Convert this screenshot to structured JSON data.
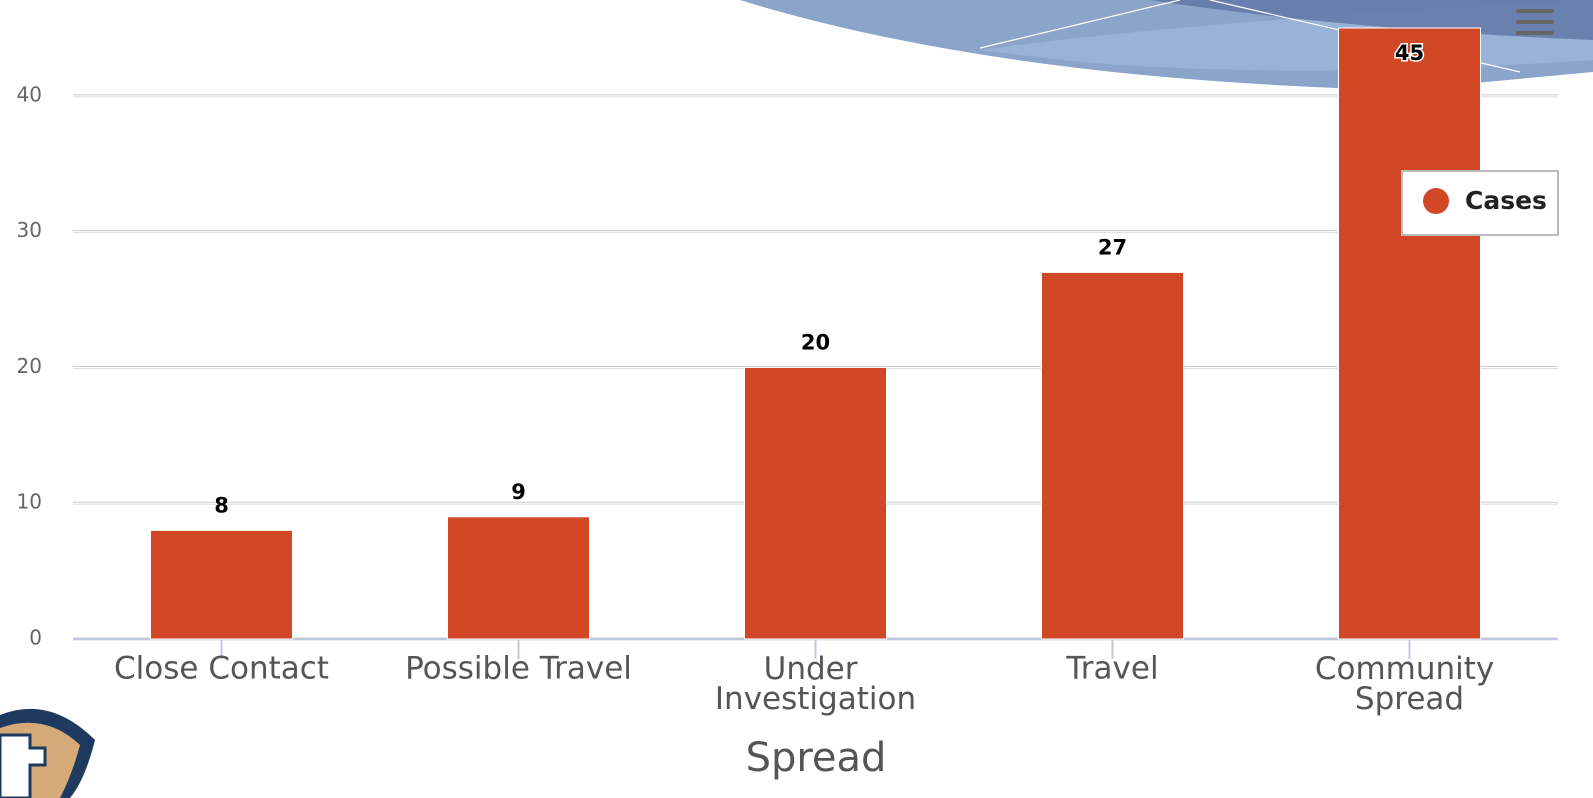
{
  "chart_data": {
    "type": "bar",
    "x_axis_title": "Spread",
    "categories": [
      "Close Contact",
      "Possible Travel",
      "Under Investigation",
      "Travel",
      "Community Spread"
    ],
    "series": [
      {
        "name": "Cases",
        "color": "#d24726",
        "values": [
          8,
          9,
          20,
          27,
          45
        ]
      }
    ],
    "ylim": [
      0,
      45
    ],
    "yticks": [
      0,
      10,
      20,
      30,
      40
    ],
    "grid": true,
    "legend": "right"
  }
}
